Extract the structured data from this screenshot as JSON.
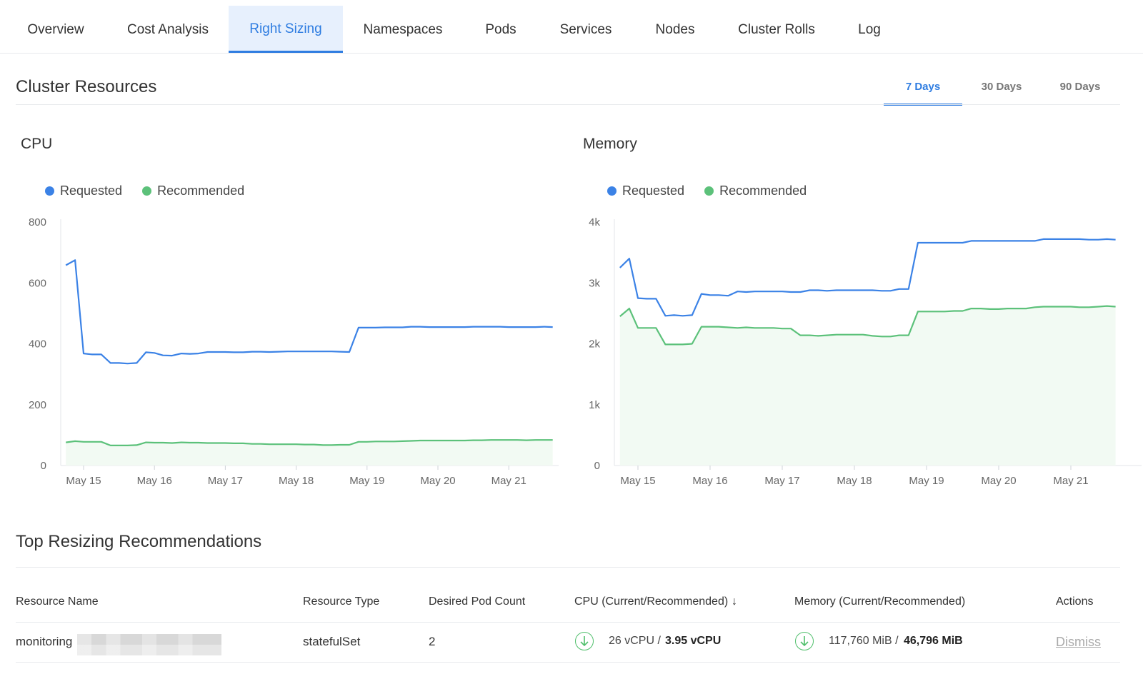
{
  "nav": {
    "tabs": [
      "Overview",
      "Cost Analysis",
      "Right Sizing",
      "Namespaces",
      "Pods",
      "Services",
      "Nodes",
      "Cluster Rolls",
      "Log"
    ],
    "active": "Right Sizing"
  },
  "cluster": {
    "title": "Cluster Resources",
    "ranges": [
      "7 Days",
      "30 Days",
      "90 Days"
    ],
    "active_range": "7 Days"
  },
  "legend": {
    "requested": "Requested",
    "recommended": "Recommended"
  },
  "colors": {
    "requested": "#3b82e6",
    "recommended": "#5cc17a",
    "recommended_fill": "#f2faf3",
    "accent": "#2f7de1"
  },
  "chart_data": [
    {
      "type": "line",
      "title": "CPU",
      "x_ticks": [
        "May 15",
        "May 16",
        "May 17",
        "May 18",
        "May 19",
        "May 20",
        "May 21"
      ],
      "y_ticks": [
        "0",
        "200",
        "400",
        "600",
        "800"
      ],
      "ylim": [
        0,
        800
      ],
      "xlim": [
        0,
        6.85
      ],
      "series": [
        {
          "name": "Requested",
          "x": [
            -0.25,
            -0.12,
            0.0,
            0.12,
            0.25,
            0.38,
            0.5,
            0.62,
            0.75,
            0.88,
            1.0,
            1.12,
            1.25,
            1.38,
            1.5,
            1.62,
            1.75,
            1.88,
            2.0,
            2.12,
            2.25,
            2.38,
            2.5,
            2.62,
            2.75,
            2.88,
            3.0,
            3.12,
            3.25,
            3.38,
            3.5,
            3.62,
            3.75,
            3.88,
            4.0,
            4.12,
            4.25,
            4.38,
            4.5,
            4.62,
            4.75,
            4.88,
            5.0,
            5.12,
            5.25,
            5.38,
            5.5,
            5.62,
            5.75,
            5.88,
            6.0,
            6.12,
            6.25,
            6.38,
            6.5,
            6.62
          ],
          "values": [
            658,
            675,
            368,
            365,
            365,
            337,
            337,
            335,
            337,
            372,
            370,
            362,
            361,
            368,
            367,
            368,
            373,
            373,
            373,
            372,
            372,
            374,
            374,
            373,
            374,
            375,
            375,
            375,
            375,
            375,
            375,
            374,
            373,
            453,
            453,
            453,
            454,
            454,
            454,
            456,
            456,
            455,
            455,
            455,
            455,
            455,
            456,
            456,
            456,
            456,
            455,
            455,
            455,
            455,
            456,
            455
          ]
        },
        {
          "name": "Recommended",
          "x": [
            -0.25,
            -0.12,
            0.0,
            0.12,
            0.25,
            0.38,
            0.5,
            0.62,
            0.75,
            0.88,
            1.0,
            1.12,
            1.25,
            1.38,
            1.5,
            1.62,
            1.75,
            1.88,
            2.0,
            2.12,
            2.25,
            2.38,
            2.5,
            2.62,
            2.75,
            2.88,
            3.0,
            3.12,
            3.25,
            3.38,
            3.5,
            3.62,
            3.75,
            3.88,
            4.0,
            4.12,
            4.25,
            4.38,
            4.5,
            4.62,
            4.75,
            4.88,
            5.0,
            5.12,
            5.25,
            5.38,
            5.5,
            5.62,
            5.75,
            5.88,
            6.0,
            6.12,
            6.25,
            6.38,
            6.5,
            6.62
          ],
          "values": [
            76,
            80,
            78,
            78,
            78,
            66,
            66,
            66,
            67,
            76,
            75,
            75,
            74,
            76,
            75,
            75,
            74,
            74,
            74,
            73,
            73,
            71,
            71,
            70,
            70,
            70,
            70,
            69,
            69,
            67,
            67,
            68,
            68,
            78,
            78,
            79,
            79,
            79,
            80,
            81,
            82,
            82,
            82,
            82,
            82,
            82,
            83,
            83,
            84,
            84,
            84,
            84,
            83,
            84,
            84,
            84
          ]
        }
      ]
    },
    {
      "type": "line",
      "title": "Memory",
      "x_ticks": [
        "May 15",
        "May 16",
        "May 17",
        "May 18",
        "May 19",
        "May 20",
        "May 21"
      ],
      "y_ticks": [
        "0",
        "1k",
        "2k",
        "3k",
        "4k"
      ],
      "ylim": [
        0,
        4000
      ],
      "xlim": [
        0,
        6.85
      ],
      "series": [
        {
          "name": "Requested",
          "x": [
            -0.25,
            -0.12,
            0.0,
            0.12,
            0.25,
            0.38,
            0.5,
            0.62,
            0.75,
            0.88,
            1.0,
            1.12,
            1.25,
            1.38,
            1.5,
            1.62,
            1.75,
            1.88,
            2.0,
            2.12,
            2.25,
            2.38,
            2.5,
            2.62,
            2.75,
            2.88,
            3.0,
            3.12,
            3.25,
            3.38,
            3.5,
            3.62,
            3.75,
            3.88,
            4.0,
            4.12,
            4.25,
            4.38,
            4.5,
            4.62,
            4.75,
            4.88,
            5.0,
            5.12,
            5.25,
            5.38,
            5.5,
            5.62,
            5.75,
            5.88,
            6.0,
            6.12,
            6.25,
            6.38,
            6.5,
            6.62
          ],
          "values": [
            3250,
            3400,
            2750,
            2740,
            2740,
            2460,
            2470,
            2460,
            2470,
            2820,
            2800,
            2800,
            2790,
            2860,
            2850,
            2860,
            2860,
            2860,
            2860,
            2850,
            2850,
            2880,
            2880,
            2870,
            2880,
            2880,
            2880,
            2880,
            2880,
            2870,
            2870,
            2900,
            2900,
            3660,
            3660,
            3660,
            3660,
            3660,
            3660,
            3690,
            3690,
            3690,
            3690,
            3690,
            3690,
            3690,
            3690,
            3720,
            3720,
            3720,
            3720,
            3720,
            3710,
            3710,
            3720,
            3710
          ]
        },
        {
          "name": "Recommended",
          "x": [
            -0.25,
            -0.12,
            0.0,
            0.12,
            0.25,
            0.38,
            0.5,
            0.62,
            0.75,
            0.88,
            1.0,
            1.12,
            1.25,
            1.38,
            1.5,
            1.62,
            1.75,
            1.88,
            2.0,
            2.12,
            2.25,
            2.38,
            2.5,
            2.62,
            2.75,
            2.88,
            3.0,
            3.12,
            3.25,
            3.38,
            3.5,
            3.62,
            3.75,
            3.88,
            4.0,
            4.12,
            4.25,
            4.38,
            4.5,
            4.62,
            4.75,
            4.88,
            5.0,
            5.12,
            5.25,
            5.38,
            5.5,
            5.62,
            5.75,
            5.88,
            6.0,
            6.12,
            6.25,
            6.38,
            6.5,
            6.62
          ],
          "values": [
            2450,
            2580,
            2260,
            2260,
            2260,
            1990,
            1990,
            1990,
            2000,
            2280,
            2280,
            2280,
            2270,
            2260,
            2270,
            2260,
            2260,
            2260,
            2250,
            2250,
            2140,
            2140,
            2130,
            2140,
            2150,
            2150,
            2150,
            2150,
            2130,
            2120,
            2120,
            2140,
            2140,
            2530,
            2530,
            2530,
            2530,
            2540,
            2540,
            2580,
            2580,
            2570,
            2570,
            2580,
            2580,
            2580,
            2600,
            2610,
            2610,
            2610,
            2610,
            2600,
            2600,
            2610,
            2620,
            2610
          ]
        }
      ]
    }
  ],
  "recommendations": {
    "title": "Top Resizing Recommendations",
    "headers": {
      "name": "Resource Name",
      "type": "Resource Type",
      "pods": "Desired Pod Count",
      "cpu": "CPU (Current/Recommended)",
      "memory": "Memory (Current/Recommended)",
      "actions": "Actions"
    },
    "sort_icon": "↓",
    "rows": [
      {
        "name": "monitoring",
        "type": "statefulSet",
        "pods": "2",
        "cpu_current": "26 vCPU /",
        "cpu_recommended": "3.95 vCPU",
        "mem_current": "117,760 MiB /",
        "mem_recommended": "46,796 MiB",
        "action": "Dismiss"
      }
    ]
  }
}
